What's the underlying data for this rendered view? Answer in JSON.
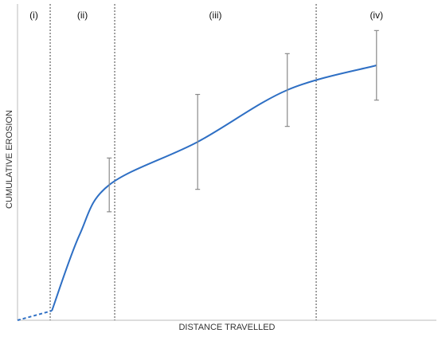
{
  "chart_data": {
    "type": "line",
    "xlabel": "DISTANCE TRAVELLED",
    "ylabel": "CUMULATIVE EROSION",
    "xlim": [
      0,
      100
    ],
    "ylim": [
      0,
      100
    ],
    "regions": [
      "(i)",
      "(ii)",
      "(iii)",
      "(iv)"
    ],
    "dividers": [
      7.8,
      23.2,
      71.3
    ],
    "series": [
      {
        "color": "#2e6fc4",
        "line_style": "dashed",
        "x": [
          0,
          8.2
        ],
        "values": [
          0,
          3
        ]
      },
      {
        "color": "#2e6fc4",
        "line_style": "solid",
        "x": [
          8.2,
          14.8,
          21.9,
          43,
          64.4,
          85.7
        ],
        "values": [
          3,
          27,
          42.8,
          56.4,
          72.8,
          80.6
        ],
        "errors": [
          null,
          null,
          8.5,
          15,
          11.5,
          11
        ]
      }
    ],
    "error_color": "#8a8a8a"
  }
}
